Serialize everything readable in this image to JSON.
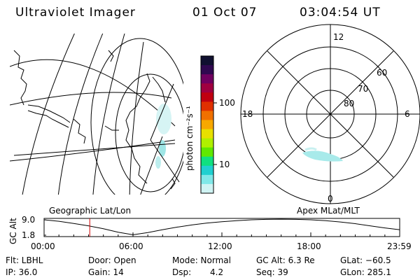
{
  "header": {
    "title": "Ultraviolet Imager",
    "date": "01 Oct 07",
    "time": "03:04:54 UT"
  },
  "colorbar": {
    "unit_label": "photon cm⁻²s⁻¹",
    "ticks": [
      "100",
      "10"
    ],
    "colors": [
      "#101030",
      "#300850",
      "#700060",
      "#a00040",
      "#c00010",
      "#e03000",
      "#f07000",
      "#f8a800",
      "#e8e000",
      "#b0f000",
      "#60e800",
      "#10e080",
      "#20d0d0",
      "#80e8e8",
      "#d0f4f4"
    ]
  },
  "polar": {
    "mlt_labels": {
      "top": "12",
      "left": "18",
      "right": "6",
      "bottom": "0"
    },
    "lat_labels": [
      "60",
      "70",
      "80"
    ],
    "aurora_color": "#9fe8e8"
  },
  "geo_map": {
    "aurora_color": "#bdeeee"
  },
  "timeline": {
    "left_label": "Geographic Lat/Lon",
    "right_label": "Apex MLat/MLT",
    "y_axis_label": "GC Alt",
    "y_ticks": [
      "9.0",
      "1.8"
    ],
    "x_ticks": [
      "00:00",
      "06:00",
      "12:00",
      "18:00",
      "23:59"
    ],
    "marker_color": "#d00000",
    "marker_time": "03:04:54",
    "series": {
      "name": "GC Alt",
      "x_hours": [
        0,
        1,
        2,
        3,
        4,
        5,
        6,
        7,
        8,
        9,
        10,
        11,
        12,
        13,
        14,
        15,
        16,
        17,
        18,
        19,
        20,
        21,
        22,
        23,
        23.98
      ],
      "y_re": [
        9.0,
        8.3,
        7.3,
        6.2,
        4.8,
        3.2,
        2.0,
        3.0,
        4.4,
        5.6,
        6.6,
        7.5,
        8.1,
        8.6,
        9.0,
        9.2,
        9.3,
        9.2,
        9.0,
        8.6,
        8.0,
        7.2,
        6.2,
        5.2,
        4.4
      ]
    }
  },
  "info_rows": [
    {
      "filter": "Flt: LBHL",
      "door": "Door: Open",
      "mode": "Mode: Normal",
      "gcalt": "GC Alt: 6.3 Re",
      "glat": "GLat: −60.5"
    },
    {
      "ip": "IP: 36.0",
      "gain": "Gain: 14",
      "dsp_label": "Dsp:",
      "dsp_value": "4.2",
      "seq": "Seq: 39",
      "glon": "GLon: 285.1"
    }
  ]
}
